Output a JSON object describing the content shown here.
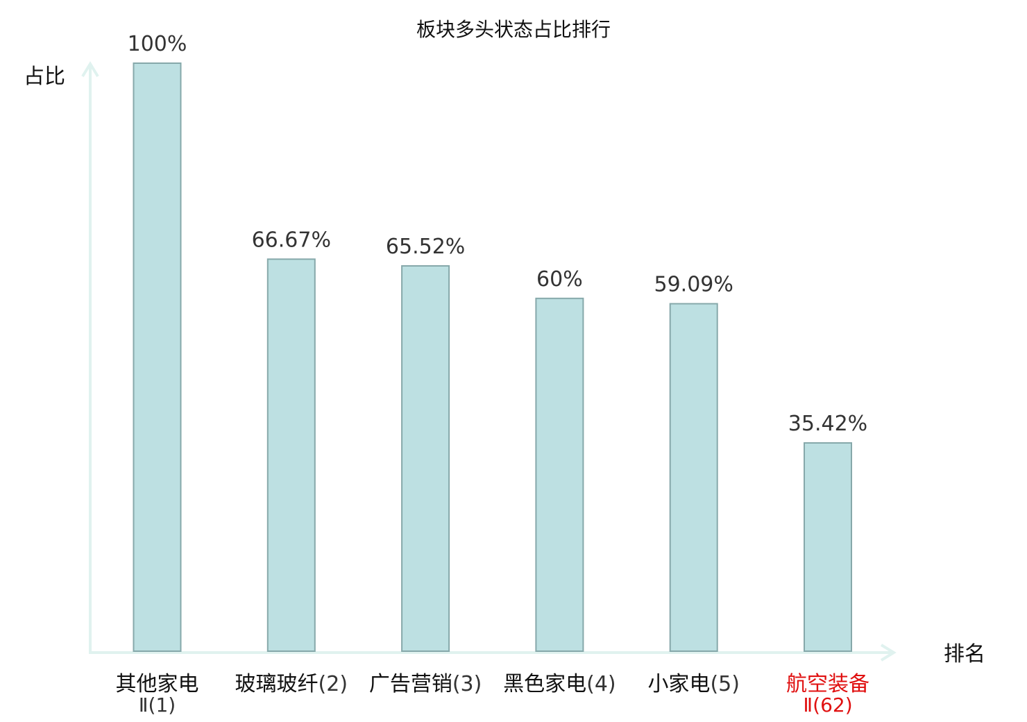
{
  "chart_data": {
    "type": "bar",
    "title": "板块多头状态占比排行",
    "xlabel": "排名",
    "ylabel": "占比",
    "ylim": [
      0,
      100
    ],
    "grid": false,
    "categories": [
      {
        "name": "其他家电",
        "rank": "Ⅱ(1)"
      },
      {
        "name": "玻璃玻纤",
        "rank": "(2)"
      },
      {
        "name": "广告营销",
        "rank": "(3)"
      },
      {
        "name": "黑色家电",
        "rank": "(4)"
      },
      {
        "name": "小家电",
        "rank": "(5)"
      },
      {
        "name": "航空装备",
        "rank": "Ⅱ(62)"
      }
    ],
    "values": [
      100,
      66.67,
      65.52,
      60,
      59.09,
      35.42
    ],
    "value_labels": [
      "100%",
      "66.67%",
      "65.52%",
      "60%",
      "59.09%",
      "35.42%"
    ],
    "highlight_index": 5
  },
  "colors": {
    "bar_fill": "#bde0e2",
    "bar_stroke": "#86a8aa",
    "axis": "#e0f2ef",
    "text": "#111111",
    "value_text": "#333333",
    "highlight": "#e01010"
  }
}
